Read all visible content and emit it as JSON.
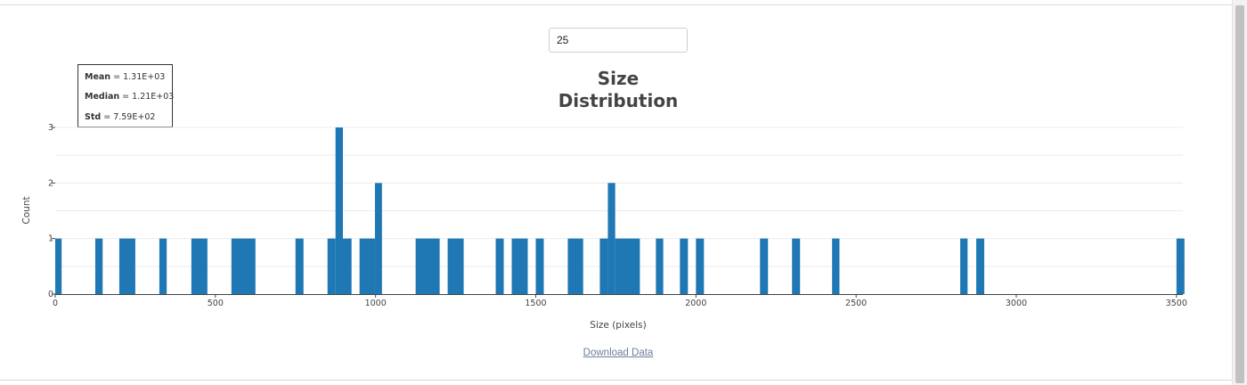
{
  "controls": {
    "bins_value": "25"
  },
  "stats": {
    "mean_label": "Mean",
    "mean_value": "= 1.31E+03",
    "median_label": "Median",
    "median_value": "= 1.21E+03",
    "std_label": "Std",
    "std_value": "= 7.59E+02"
  },
  "chart_data": {
    "type": "bar",
    "title": "Size\nDistribution",
    "xlabel": "Size (pixels)",
    "ylabel": "Count",
    "xlim": [
      0,
      3520
    ],
    "ylim": [
      0,
      3
    ],
    "x_ticks": [
      "0",
      "500",
      "1000",
      "1500",
      "2000",
      "2500",
      "3000",
      "3500"
    ],
    "y_ticks": [
      "0",
      "1",
      "2",
      "3"
    ],
    "grid": "horizontal",
    "color": "#1f77b4",
    "bins": [
      {
        "x0": 0,
        "x1": 20,
        "count": 1
      },
      {
        "x0": 125,
        "x1": 148,
        "count": 1
      },
      {
        "x0": 200,
        "x1": 250,
        "count": 1
      },
      {
        "x0": 325,
        "x1": 348,
        "count": 1
      },
      {
        "x0": 425,
        "x1": 475,
        "count": 1
      },
      {
        "x0": 550,
        "x1": 625,
        "count": 1
      },
      {
        "x0": 750,
        "x1": 775,
        "count": 1
      },
      {
        "x0": 850,
        "x1": 875,
        "count": 1
      },
      {
        "x0": 875,
        "x1": 898,
        "count": 3
      },
      {
        "x0": 898,
        "x1": 925,
        "count": 1
      },
      {
        "x0": 950,
        "x1": 998,
        "count": 1
      },
      {
        "x0": 998,
        "x1": 1020,
        "count": 2
      },
      {
        "x0": 1125,
        "x1": 1200,
        "count": 1
      },
      {
        "x0": 1225,
        "x1": 1275,
        "count": 1
      },
      {
        "x0": 1375,
        "x1": 1400,
        "count": 1
      },
      {
        "x0": 1425,
        "x1": 1475,
        "count": 1
      },
      {
        "x0": 1500,
        "x1": 1525,
        "count": 1
      },
      {
        "x0": 1600,
        "x1": 1648,
        "count": 1
      },
      {
        "x0": 1700,
        "x1": 1725,
        "count": 1
      },
      {
        "x0": 1725,
        "x1": 1748,
        "count": 2
      },
      {
        "x0": 1748,
        "x1": 1825,
        "count": 1
      },
      {
        "x0": 1875,
        "x1": 1898,
        "count": 1
      },
      {
        "x0": 1950,
        "x1": 1975,
        "count": 1
      },
      {
        "x0": 2000,
        "x1": 2025,
        "count": 1
      },
      {
        "x0": 2200,
        "x1": 2225,
        "count": 1
      },
      {
        "x0": 2300,
        "x1": 2325,
        "count": 1
      },
      {
        "x0": 2425,
        "x1": 2448,
        "count": 1
      },
      {
        "x0": 2825,
        "x1": 2848,
        "count": 1
      },
      {
        "x0": 2875,
        "x1": 2900,
        "count": 1
      },
      {
        "x0": 3500,
        "x1": 3525,
        "count": 1
      }
    ]
  },
  "footer": {
    "download_label": "Download Data"
  }
}
